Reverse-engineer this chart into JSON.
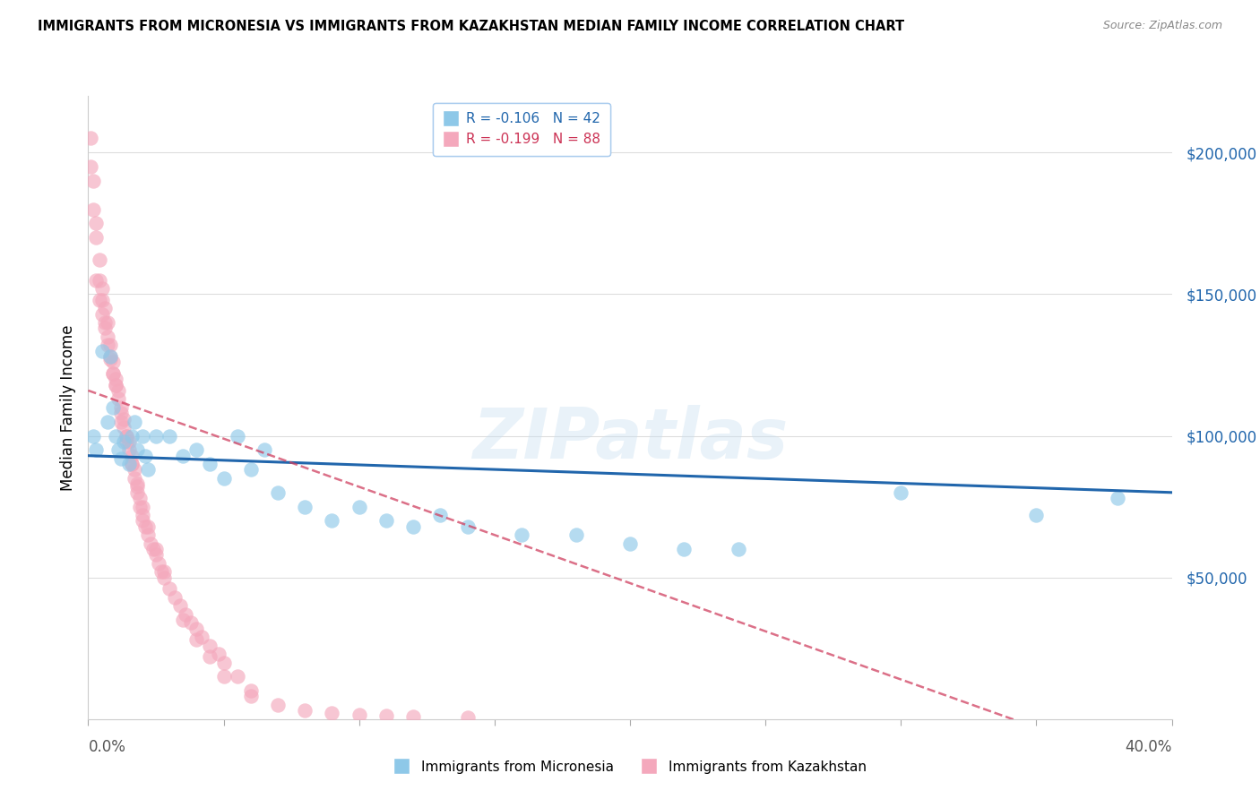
{
  "title": "IMMIGRANTS FROM MICRONESIA VS IMMIGRANTS FROM KAZAKHSTAN MEDIAN FAMILY INCOME CORRELATION CHART",
  "source": "Source: ZipAtlas.com",
  "ylabel": "Median Family Income",
  "x_min": 0.0,
  "x_max": 0.4,
  "y_min": 0,
  "y_max": 220000,
  "legend1_r": "R = -0.106",
  "legend1_n": "N = 42",
  "legend2_r": "R = -0.199",
  "legend2_n": "N = 88",
  "legend1_label": "Immigrants from Micronesia",
  "legend2_label": "Immigrants from Kazakhstan",
  "micronesia_color": "#8ec8e8",
  "kazakhstan_color": "#f4a8bc",
  "trendline_micro_color": "#2166ac",
  "trendline_kazakh_color": "#d04060",
  "background_color": "#ffffff",
  "micronesia_x": [
    0.002,
    0.003,
    0.005,
    0.007,
    0.008,
    0.009,
    0.01,
    0.011,
    0.012,
    0.013,
    0.015,
    0.016,
    0.017,
    0.018,
    0.02,
    0.021,
    0.022,
    0.025,
    0.03,
    0.035,
    0.04,
    0.045,
    0.05,
    0.055,
    0.06,
    0.065,
    0.07,
    0.08,
    0.09,
    0.1,
    0.11,
    0.12,
    0.13,
    0.14,
    0.16,
    0.18,
    0.2,
    0.22,
    0.24,
    0.3,
    0.35,
    0.38
  ],
  "micronesia_y": [
    100000,
    95000,
    130000,
    105000,
    128000,
    110000,
    100000,
    95000,
    92000,
    98000,
    90000,
    100000,
    105000,
    95000,
    100000,
    93000,
    88000,
    100000,
    100000,
    93000,
    95000,
    90000,
    85000,
    100000,
    88000,
    95000,
    80000,
    75000,
    70000,
    75000,
    70000,
    68000,
    72000,
    68000,
    65000,
    65000,
    62000,
    60000,
    60000,
    80000,
    72000,
    78000
  ],
  "kazakhstan_x": [
    0.001,
    0.001,
    0.002,
    0.002,
    0.003,
    0.003,
    0.004,
    0.004,
    0.005,
    0.005,
    0.006,
    0.006,
    0.007,
    0.007,
    0.008,
    0.008,
    0.009,
    0.009,
    0.01,
    0.01,
    0.011,
    0.011,
    0.012,
    0.012,
    0.013,
    0.013,
    0.014,
    0.014,
    0.015,
    0.015,
    0.016,
    0.016,
    0.017,
    0.017,
    0.018,
    0.018,
    0.019,
    0.019,
    0.02,
    0.02,
    0.021,
    0.022,
    0.023,
    0.024,
    0.025,
    0.026,
    0.027,
    0.028,
    0.03,
    0.032,
    0.034,
    0.036,
    0.038,
    0.04,
    0.042,
    0.045,
    0.048,
    0.05,
    0.055,
    0.06,
    0.003,
    0.004,
    0.005,
    0.006,
    0.007,
    0.008,
    0.009,
    0.01,
    0.012,
    0.014,
    0.016,
    0.018,
    0.02,
    0.022,
    0.025,
    0.028,
    0.035,
    0.04,
    0.045,
    0.05,
    0.06,
    0.07,
    0.08,
    0.09,
    0.1,
    0.11,
    0.12,
    0.14
  ],
  "kazakhstan_y": [
    205000,
    195000,
    190000,
    180000,
    175000,
    170000,
    162000,
    155000,
    152000,
    148000,
    145000,
    140000,
    140000,
    135000,
    132000,
    128000,
    126000,
    122000,
    120000,
    118000,
    116000,
    113000,
    110000,
    108000,
    106000,
    103000,
    100000,
    100000,
    98000,
    95000,
    93000,
    90000,
    88000,
    85000,
    83000,
    80000,
    78000,
    75000,
    72000,
    70000,
    68000,
    65000,
    62000,
    60000,
    58000,
    55000,
    52000,
    50000,
    46000,
    43000,
    40000,
    37000,
    34000,
    32000,
    29000,
    26000,
    23000,
    20000,
    15000,
    10000,
    155000,
    148000,
    143000,
    138000,
    132000,
    127000,
    122000,
    118000,
    105000,
    98000,
    90000,
    82000,
    75000,
    68000,
    60000,
    52000,
    35000,
    28000,
    22000,
    15000,
    8000,
    5000,
    3000,
    2000,
    1500,
    1200,
    900,
    700
  ]
}
